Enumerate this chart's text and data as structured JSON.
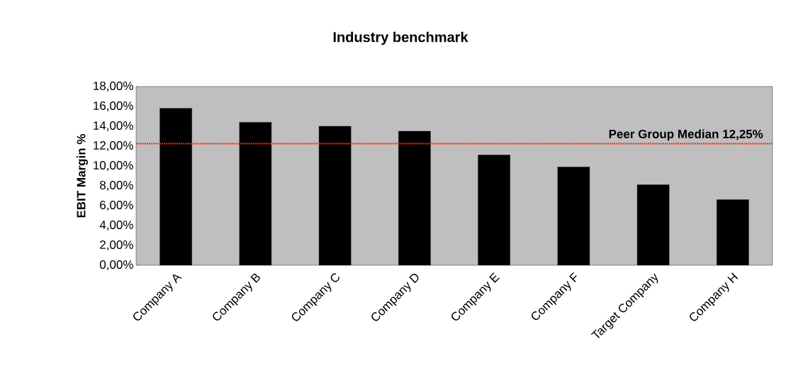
{
  "chart_data": {
    "type": "bar",
    "title": "Industry benchmark",
    "ylabel": "EBIT Margin %",
    "categories": [
      "Company A",
      "Company B",
      "Company C",
      "Company D",
      "Company E",
      "Company F",
      "Target Company",
      "Company H"
    ],
    "values": [
      15.8,
      14.4,
      14.0,
      13.5,
      11.1,
      9.9,
      8.1,
      6.6
    ],
    "color": "#000000",
    "ylim": [
      0,
      18
    ],
    "yticks": [
      {
        "value": 0,
        "label": "0,00%"
      },
      {
        "value": 2,
        "label": "2,00%"
      },
      {
        "value": 4,
        "label": "4,00%"
      },
      {
        "value": 6,
        "label": "6,00%"
      },
      {
        "value": 8,
        "label": "8,00%"
      },
      {
        "value": 10,
        "label": "10,00%"
      },
      {
        "value": 12,
        "label": "12,00%"
      },
      {
        "value": 14,
        "label": "14,00%"
      },
      {
        "value": 16,
        "label": "16,00%"
      },
      {
        "value": 18,
        "label": "18,00%"
      }
    ],
    "ref_lines": [
      {
        "axis": "y",
        "value": 12.25,
        "label": "Peer Group Median 12,25%",
        "color": "#ff2a00",
        "line_style": "dotted"
      }
    ],
    "grid": false
  }
}
